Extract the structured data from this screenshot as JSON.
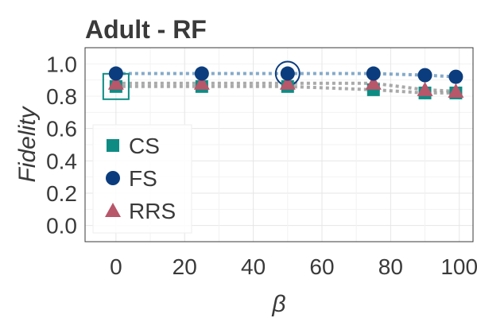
{
  "chart_data": {
    "type": "line",
    "title": "Adult - RF",
    "xlabel": "β",
    "ylabel": "Fidelity",
    "xlim": [
      -9,
      104
    ],
    "ylim": [
      -0.1,
      1.1
    ],
    "xticks": [
      "0",
      "20",
      "40",
      "60",
      "80",
      "100"
    ],
    "yticks": [
      "0.0",
      "0.2",
      "0.4",
      "0.6",
      "0.8",
      "1.0"
    ],
    "grid": true,
    "legend_position": "center-left",
    "x": [
      0,
      25,
      50,
      75,
      90,
      99
    ],
    "series": [
      {
        "name": "CS",
        "marker": "square",
        "color": "#0e8c84",
        "line_color": "#9a9a9a",
        "values": [
          0.86,
          0.86,
          0.86,
          0.84,
          0.82,
          0.82
        ]
      },
      {
        "name": "FS",
        "marker": "circle",
        "color": "#0b3d7e",
        "line_color": "#6f9bc0",
        "values": [
          0.94,
          0.94,
          0.94,
          0.94,
          0.93,
          0.92
        ]
      },
      {
        "name": "RRS",
        "marker": "triangle",
        "color": "#b8566a",
        "line_color": "#9a9a9a",
        "values": [
          0.88,
          0.88,
          0.88,
          0.88,
          0.84,
          0.83
        ]
      }
    ],
    "highlights": [
      {
        "series": "CS",
        "x": 0,
        "y": 0.86,
        "shape": "square"
      },
      {
        "series": "FS",
        "x": 50,
        "y": 0.94,
        "shape": "circle"
      }
    ]
  }
}
